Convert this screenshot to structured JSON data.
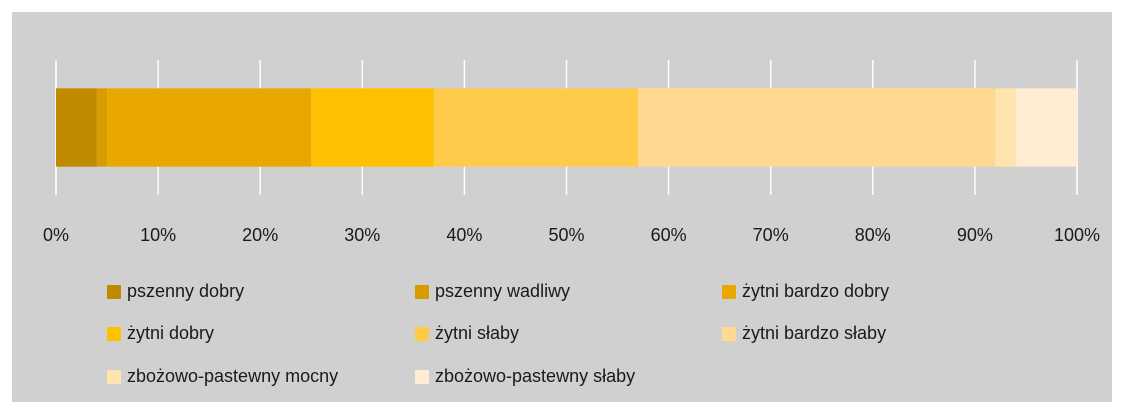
{
  "chart_data": {
    "type": "bar",
    "orientation": "horizontal",
    "stacked": true,
    "grid": true,
    "legend": "bottom",
    "categories": [
      null
    ],
    "series": [
      {
        "name": "pszenny dobry",
        "color": "#bf8a00",
        "values": [
          4
        ]
      },
      {
        "name": "pszenny wadliwy",
        "color": "#d99c00",
        "values": [
          1
        ]
      },
      {
        "name": "żytni bardzo dobry",
        "color": "#e8a800",
        "values": [
          20
        ]
      },
      {
        "name": "żytni dobry",
        "color": "#ffc000",
        "values": [
          12
        ]
      },
      {
        "name": "żytni słaby",
        "color": "#ffc94a",
        "values": [
          20
        ]
      },
      {
        "name": "żytni bardzo słaby",
        "color": "#ffd98f",
        "values": [
          35
        ]
      },
      {
        "name": "zbożowo-pastewny mocny",
        "color": "#ffe4ae",
        "values": [
          2
        ]
      },
      {
        "name": "zbożowo-pastewny słaby",
        "color": "#ffecd3",
        "values": [
          6
        ]
      }
    ],
    "xlim": [
      0,
      100
    ],
    "xticks": [
      {
        "value": 0,
        "label": "0%"
      },
      {
        "value": 10,
        "label": "10%"
      },
      {
        "value": 20,
        "label": "20%"
      },
      {
        "value": 30,
        "label": "30%"
      },
      {
        "value": 40,
        "label": "40%"
      },
      {
        "value": 50,
        "label": "50%"
      },
      {
        "value": 60,
        "label": "60%"
      },
      {
        "value": 70,
        "label": "70%"
      },
      {
        "value": 80,
        "label": "80%"
      },
      {
        "value": 90,
        "label": "90%"
      },
      {
        "value": 100,
        "label": "100%"
      }
    ]
  }
}
